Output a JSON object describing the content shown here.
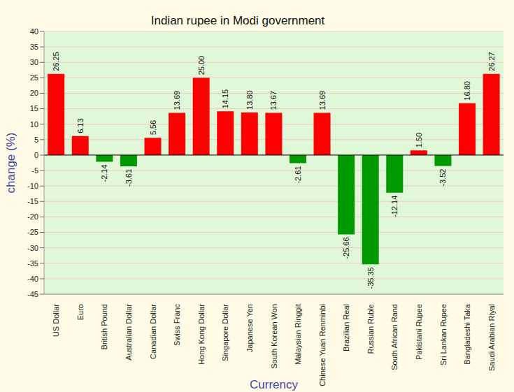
{
  "chart_data": {
    "type": "bar",
    "title": "Indian rupee in Modi government",
    "x_label": "Currency",
    "y_label": "change (%)",
    "categories": [
      "US Dollar",
      "Euro",
      "British Pound",
      "Australian Dollar",
      "Canadian Dollar",
      "Swiss Franc",
      "Hong Kong Dollar",
      "Singapore Dollar",
      "Japanese Yen",
      "South Korean Won",
      "Malaysian Ringgit",
      "Chinese Yuan Renminbi",
      "Brazilian Real",
      "Russian Ruble",
      "South African Rand",
      "Pakistani Rupee",
      "Sri Lankan Rupee",
      "Bangladeshi Taka",
      "Saudi Arabian Riyal"
    ],
    "values": [
      26.25,
      6.13,
      -2.14,
      -3.61,
      5.56,
      13.69,
      25.0,
      14.15,
      13.8,
      13.67,
      -2.61,
      13.69,
      -25.66,
      -35.35,
      -12.14,
      1.5,
      -3.52,
      16.8,
      26.27
    ],
    "value_labels": [
      "26.25",
      "6.13",
      "-2.14",
      "-3.61",
      "5.56",
      "13.69",
      "25.00",
      "14.15",
      "13.80",
      "13.67",
      "-2.61",
      "13.69",
      "-25.66",
      "-35.35",
      "-12.14",
      "1.50",
      "-3.52",
      "16.80",
      "26.27"
    ],
    "colors": [
      "#ff0000",
      "#ff0000",
      "#009900",
      "#009900",
      "#ff0000",
      "#ff0000",
      "#ff0000",
      "#ff0000",
      "#ff0000",
      "#ff0000",
      "#009900",
      "#ff0000",
      "#009900",
      "#009900",
      "#009900",
      "#ff0000",
      "#009900",
      "#ff0000",
      "#ff0000"
    ],
    "ylim": [
      -45,
      40
    ],
    "yticks": [
      -45,
      -40,
      -35,
      -30,
      -25,
      -20,
      -15,
      -10,
      -5,
      0,
      5,
      10,
      15,
      20,
      25,
      30,
      35,
      40
    ],
    "grid": true,
    "data_labels": true
  }
}
